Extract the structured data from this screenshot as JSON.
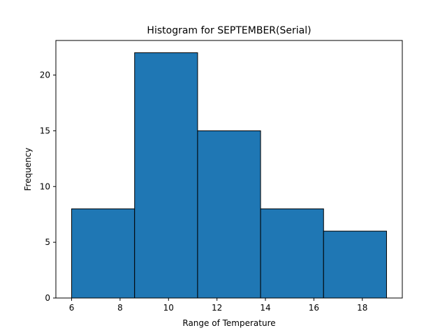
{
  "chart_data": {
    "type": "bar",
    "title": "Histogram for SEPTEMBER(Serial)",
    "xlabel": "Range of Temperature",
    "ylabel": "Frequency",
    "bin_edges": [
      6.0,
      8.6,
      11.2,
      13.8,
      16.4,
      19.0
    ],
    "values": [
      8,
      22,
      15,
      8,
      6
    ],
    "xlim": [
      5.35,
      19.65
    ],
    "ylim": [
      0,
      23.1
    ],
    "xticks": [
      6,
      8,
      10,
      12,
      14,
      16,
      18
    ],
    "yticks": [
      0,
      5,
      10,
      15,
      20
    ],
    "bar_color": "#1f77b4",
    "edge_color": "#000000",
    "grid": false
  }
}
